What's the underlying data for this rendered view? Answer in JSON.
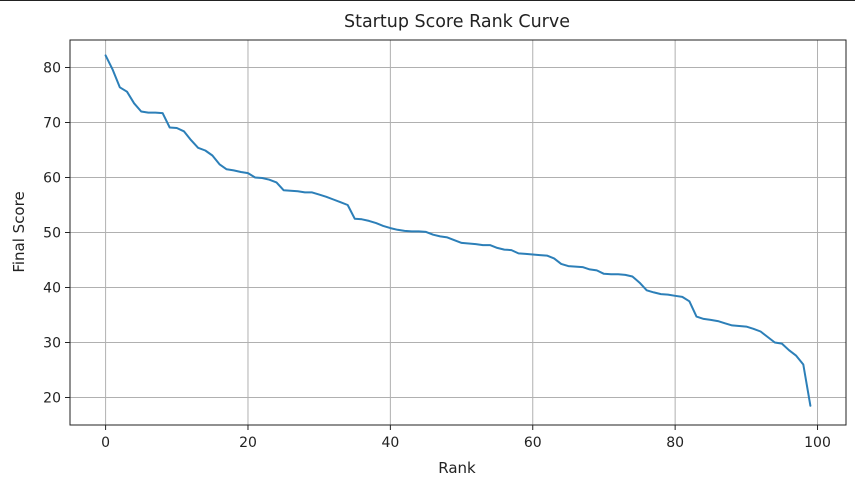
{
  "chart_data": {
    "type": "line",
    "title": "Startup Score Rank Curve",
    "xlabel": "Rank",
    "ylabel": "Final Score",
    "xlim": [
      -5,
      104
    ],
    "ylim": [
      15,
      85
    ],
    "xticks": [
      0,
      20,
      40,
      60,
      80,
      100
    ],
    "yticks": [
      20,
      30,
      40,
      50,
      60,
      70,
      80
    ],
    "grid": true,
    "legend": "none",
    "line_color": "#2c7fb8",
    "series": [
      {
        "values": [
          82.2,
          79.6,
          76.4,
          75.6,
          73.5,
          72.0,
          71.8,
          71.8,
          71.7,
          69.1,
          69.0,
          68.4,
          66.8,
          65.4,
          64.9,
          64.0,
          62.4,
          61.5,
          61.3,
          61.0,
          60.8,
          60.0,
          59.9,
          59.6,
          59.1,
          57.7,
          57.6,
          57.5,
          57.3,
          57.3,
          56.9,
          56.5,
          56.0,
          55.5,
          55.0,
          52.5,
          52.4,
          52.1,
          51.7,
          51.2,
          50.8,
          50.5,
          50.3,
          50.2,
          50.2,
          50.1,
          49.6,
          49.3,
          49.1,
          48.6,
          48.1,
          48.0,
          47.9,
          47.7,
          47.7,
          47.2,
          46.9,
          46.8,
          46.2,
          46.1,
          46.0,
          45.9,
          45.8,
          45.3,
          44.3,
          43.9,
          43.8,
          43.7,
          43.3,
          43.1,
          42.5,
          42.4,
          42.4,
          42.3,
          42.0,
          40.9,
          39.5,
          39.1,
          38.8,
          38.7,
          38.5,
          38.3,
          37.5,
          34.7,
          34.3,
          34.1,
          33.9,
          33.5,
          33.1,
          33.0,
          32.9,
          32.5,
          32.0,
          31.0,
          30.0,
          29.8,
          28.6,
          27.6,
          26.0,
          18.5
        ]
      }
    ]
  }
}
